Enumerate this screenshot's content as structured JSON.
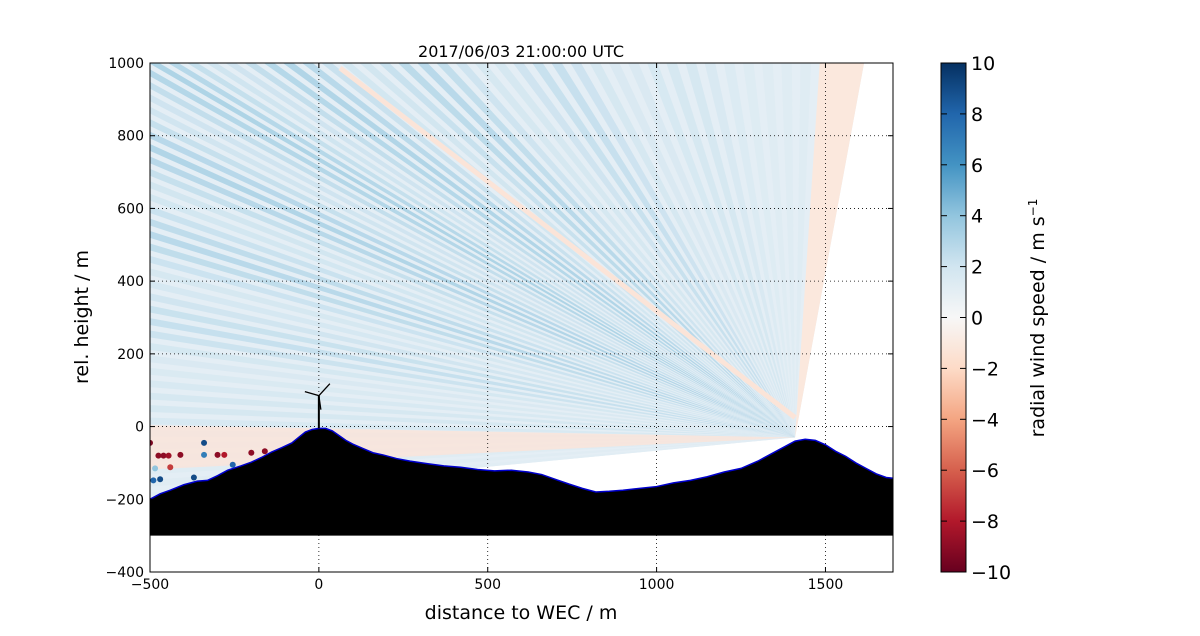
{
  "chart_data": {
    "type": "heatmap",
    "title": "2017/06/03 21:00:00 UTC",
    "xlabel": "distance to WEC / m",
    "ylabel": "rel. height / m",
    "xlim": [
      -500,
      1700
    ],
    "ylim": [
      -400,
      1000
    ],
    "xticks": [
      -500,
      0,
      500,
      1000,
      1500
    ],
    "yticks": [
      -400,
      -200,
      0,
      200,
      400,
      600,
      800,
      1000
    ],
    "xtick_labels": [
      "−500",
      "0",
      "500",
      "1000",
      "1500"
    ],
    "ytick_labels": [
      "−400",
      "−200",
      "0",
      "200",
      "400",
      "600",
      "800",
      "1000"
    ],
    "grid": true,
    "scan_origin": [
      1410,
      -30
    ],
    "colorbar": {
      "label": "radial wind speed / m s",
      "label_superscript": "−1",
      "range": [
        -10,
        10
      ],
      "ticks": [
        -10,
        -8,
        -6,
        -4,
        -2,
        0,
        2,
        4,
        6,
        8,
        10
      ],
      "tick_labels": [
        "−10",
        "−8",
        "−6",
        "−4",
        "−2",
        "0",
        "2",
        "4",
        "6",
        "8",
        "10"
      ],
      "colormap": [
        "#67001f",
        "#b2182b",
        "#d6604d",
        "#f4a582",
        "#fddbc7",
        "#f7f7f7",
        "#d1e5f0",
        "#92c5de",
        "#4393c3",
        "#2166ac",
        "#053061"
      ]
    },
    "terrain_profile": {
      "x": [
        -500,
        -470,
        -440,
        -400,
        -360,
        -330,
        -300,
        -270,
        -230,
        -200,
        -170,
        -140,
        -110,
        -80,
        -60,
        -40,
        -20,
        0,
        20,
        40,
        60,
        80,
        100,
        130,
        160,
        190,
        230,
        270,
        320,
        370,
        420,
        470,
        520,
        570,
        620,
        660,
        700,
        740,
        780,
        820,
        860,
        900,
        950,
        1000,
        1050,
        1100,
        1150,
        1200,
        1250,
        1300,
        1340,
        1380,
        1410,
        1440,
        1470,
        1500,
        1530,
        1560,
        1590,
        1620,
        1650,
        1680,
        1700
      ],
      "y": [
        -200,
        -185,
        -175,
        -160,
        -150,
        -148,
        -135,
        -120,
        -108,
        -98,
        -85,
        -70,
        -58,
        -45,
        -30,
        -15,
        -8,
        -5,
        -5,
        -12,
        -25,
        -38,
        -48,
        -60,
        -72,
        -78,
        -88,
        -95,
        -102,
        -108,
        -112,
        -118,
        -122,
        -120,
        -125,
        -132,
        -145,
        -158,
        -170,
        -180,
        -178,
        -175,
        -170,
        -165,
        -155,
        -148,
        -138,
        -125,
        -115,
        -95,
        -75,
        -55,
        -40,
        -35,
        -38,
        -50,
        -68,
        -82,
        -100,
        -115,
        -130,
        -140,
        -142
      ],
      "bottom": -300,
      "color": "#000000",
      "outline_color": "#0000cc"
    },
    "turbine": {
      "x": 0,
      "hub_height": 85
    },
    "scatter_points": [
      {
        "x": -500,
        "y": -45,
        "value": -9.5
      },
      {
        "x": -475,
        "y": -80,
        "value": -9
      },
      {
        "x": -460,
        "y": -80,
        "value": -9
      },
      {
        "x": -445,
        "y": -80,
        "value": -8.5
      },
      {
        "x": -410,
        "y": -78,
        "value": -9
      },
      {
        "x": -485,
        "y": -115,
        "value": 4
      },
      {
        "x": -440,
        "y": -112,
        "value": -7
      },
      {
        "x": -490,
        "y": -148,
        "value": 8
      },
      {
        "x": -470,
        "y": -145,
        "value": 9
      },
      {
        "x": -370,
        "y": -140,
        "value": 9
      },
      {
        "x": -340,
        "y": -45,
        "value": 9
      },
      {
        "x": -340,
        "y": -78,
        "value": 7
      },
      {
        "x": -300,
        "y": -78,
        "value": -9
      },
      {
        "x": -280,
        "y": -78,
        "value": -8
      },
      {
        "x": -255,
        "y": -105,
        "value": 8
      },
      {
        "x": -200,
        "y": -72,
        "value": -9
      },
      {
        "x": -160,
        "y": -68,
        "value": -9
      }
    ]
  }
}
